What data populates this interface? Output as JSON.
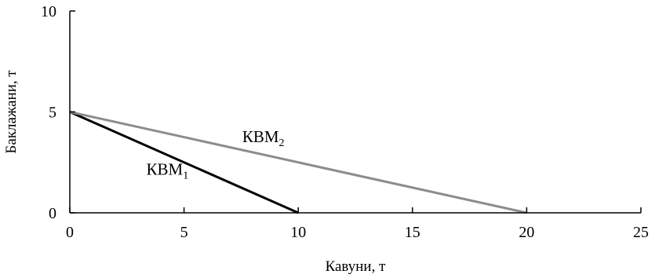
{
  "chart_data": {
    "type": "line",
    "title": "",
    "xlabel": "Кавуни, т",
    "ylabel": "Баклажани, т",
    "xlim": [
      0,
      25
    ],
    "ylim": [
      0,
      10
    ],
    "x_ticks": [
      0,
      5,
      10,
      15,
      20,
      25
    ],
    "y_ticks": [
      0,
      5,
      10
    ],
    "grid": false,
    "legend": "none",
    "series": [
      {
        "label_main": "КВМ",
        "label_sub": "1",
        "color": "#000000",
        "points": [
          [
            0,
            5
          ],
          [
            10,
            0
          ]
        ],
        "label_at": [
          3.35,
          1.88
        ]
      },
      {
        "label_main": "КВМ",
        "label_sub": "2",
        "color": "#8c8c8c",
        "points": [
          [
            0,
            5
          ],
          [
            20,
            0
          ]
        ],
        "label_at": [
          7.55,
          3.5
        ]
      }
    ]
  }
}
